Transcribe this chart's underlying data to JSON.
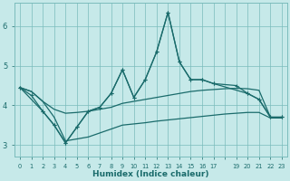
{
  "xlabel": "Humidex (Indice chaleur)",
  "bg_color": "#c6e9e9",
  "grid_color": "#7bbcbc",
  "line_color": "#1a6b6b",
  "ylim": [
    2.7,
    6.6
  ],
  "yticks": [
    3,
    4,
    5,
    6
  ],
  "xlim": [
    -0.5,
    23.5
  ],
  "x_ticks": [
    0,
    1,
    2,
    3,
    4,
    5,
    6,
    7,
    8,
    9,
    10,
    11,
    12,
    13,
    14,
    15,
    16,
    17,
    18,
    19,
    20,
    21,
    22,
    23
  ],
  "x_tick_labels": [
    "0",
    "1",
    "2",
    "3",
    "4",
    "5",
    "6",
    "7",
    "8",
    "9",
    "10",
    "11",
    "12",
    "13",
    "14",
    "15",
    "16",
    "17",
    "",
    "19",
    "20",
    "21",
    "22",
    "23"
  ],
  "line1_x": [
    0,
    1,
    2,
    3,
    4,
    5,
    6,
    7,
    8,
    9,
    10,
    11,
    12,
    13,
    14,
    15,
    16,
    17,
    20,
    21,
    22,
    23
  ],
  "line1_y": [
    4.45,
    4.25,
    3.85,
    3.5,
    3.05,
    3.45,
    3.85,
    3.95,
    4.3,
    4.9,
    4.2,
    4.65,
    5.35,
    6.35,
    5.1,
    4.65,
    4.65,
    4.55,
    4.3,
    4.15,
    3.7,
    3.7
  ],
  "line2_x": [
    0,
    2,
    3,
    4,
    5,
    6,
    7,
    8,
    9,
    10,
    11,
    12,
    13,
    14,
    15,
    16,
    17,
    19,
    20,
    21,
    22,
    23
  ],
  "line2_y": [
    4.45,
    3.85,
    3.5,
    3.05,
    3.45,
    3.85,
    3.95,
    4.3,
    4.9,
    4.2,
    4.65,
    5.35,
    6.35,
    5.1,
    4.65,
    4.65,
    4.55,
    4.5,
    4.3,
    4.15,
    3.7,
    3.7
  ],
  "upper_x": [
    0,
    1,
    2,
    3,
    4,
    5,
    6,
    7,
    8,
    9,
    10,
    11,
    12,
    13,
    14,
    15,
    16,
    17,
    18,
    19,
    20,
    21,
    22,
    23
  ],
  "upper_y": [
    4.45,
    4.35,
    4.1,
    3.9,
    3.8,
    3.82,
    3.85,
    3.9,
    3.95,
    4.05,
    4.1,
    4.15,
    4.2,
    4.25,
    4.3,
    4.35,
    4.38,
    4.4,
    4.42,
    4.43,
    4.42,
    4.38,
    3.7,
    3.7
  ],
  "lower_x": [
    0,
    1,
    2,
    3,
    4,
    5,
    6,
    7,
    8,
    9,
    10,
    11,
    12,
    13,
    14,
    15,
    16,
    17,
    18,
    19,
    20,
    21,
    22,
    23
  ],
  "lower_y": [
    4.45,
    4.35,
    4.1,
    3.7,
    3.1,
    3.15,
    3.2,
    3.3,
    3.4,
    3.5,
    3.53,
    3.56,
    3.6,
    3.63,
    3.66,
    3.69,
    3.72,
    3.75,
    3.78,
    3.8,
    3.82,
    3.82,
    3.68,
    3.68
  ]
}
